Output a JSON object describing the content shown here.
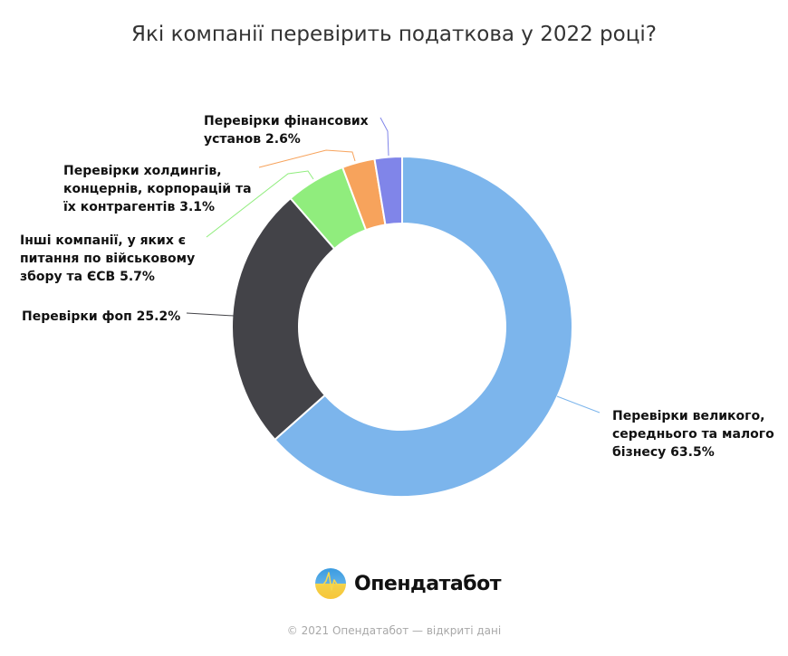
{
  "title": "Які компанії перевірить податкова у 2022 році?",
  "chart_data": {
    "type": "pie",
    "variant": "donut",
    "title": "Які компанії перевірить податкова у 2022 році?",
    "categories": [
      "Перевірки великого, середнього та малого бізнесу",
      "Перевірки фоп",
      "Інші компанії, у яких є питання по військовому збору та ЄСВ",
      "Перевірки холдингів, концернів, корпорацій та їх контрагентів",
      "Перевірки фінансових установ"
    ],
    "values": [
      63.5,
      25.2,
      5.7,
      3.1,
      2.6
    ],
    "colors": [
      "#7cb5ec",
      "#434348",
      "#90ed7d",
      "#f7a35c",
      "#8085e9"
    ],
    "unit": "%",
    "legend": "none (data labels with connectors)"
  },
  "labels": {
    "business": [
      "Перевірки великого,",
      "середнього та малого",
      "бізнесу 63.5%"
    ],
    "fop": [
      "Перевірки фоп 25.2%"
    ],
    "other": [
      "Інші компанії, у яких є",
      "питання по військовому",
      "збору та ЄСВ 5.7%"
    ],
    "holdings": [
      "Перевірки холдингів,",
      "концернів, корпорацій та",
      "їх контрагентів 3.1%"
    ],
    "financial": [
      "Перевірки фінансових",
      "установ 2.6%"
    ]
  },
  "brand": {
    "name": "Опендатабот",
    "icon": "pulse-logo-icon"
  },
  "footer": {
    "copyright": "© 2021 Опендатабот — відкриті дані"
  }
}
